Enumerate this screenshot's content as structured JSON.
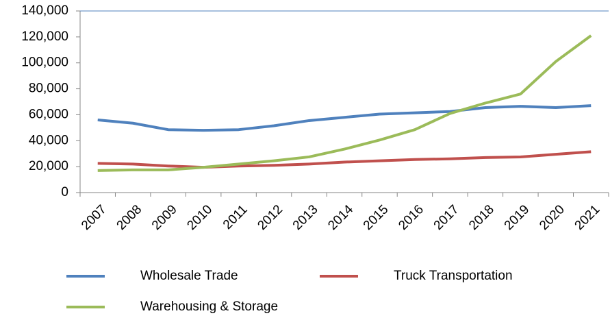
{
  "chart_data": {
    "type": "line",
    "categories": [
      "2007",
      "2008",
      "2009",
      "2010",
      "2011",
      "2012",
      "2013",
      "2014",
      "2015",
      "2016",
      "2017",
      "2018",
      "2019",
      "2020",
      "2021"
    ],
    "series": [
      {
        "name": "Wholesale Trade",
        "color": "#4f81bd",
        "values": [
          56000,
          53500,
          48500,
          48000,
          48500,
          51500,
          55500,
          58000,
          60500,
          61500,
          62500,
          65500,
          66500,
          65500,
          67000
        ]
      },
      {
        "name": "Truck Transportation",
        "color": "#c0504d",
        "values": [
          22500,
          22000,
          20500,
          19500,
          20500,
          21000,
          22000,
          23500,
          24500,
          25500,
          26000,
          27000,
          27500,
          29500,
          31500
        ]
      },
      {
        "name": "Warehousing & Storage",
        "color": "#9bbb59",
        "values": [
          17000,
          17500,
          17500,
          19500,
          22000,
          24500,
          27500,
          33500,
          40500,
          48500,
          61000,
          69000,
          76000,
          101000,
          121000
        ]
      }
    ],
    "ylim": [
      0,
      140000
    ],
    "yticks": [
      0,
      {
        "value": 20000,
        "label": "20,000"
      },
      {
        "value": 40000,
        "label": "40,000"
      },
      {
        "value": 60000,
        "label": "60,000"
      },
      {
        "value": 80000,
        "label": "80,000"
      },
      {
        "value": 100000,
        "label": "100,000"
      },
      {
        "value": 120000,
        "label": "120,000"
      },
      {
        "value": 140000,
        "label": "140,000"
      }
    ],
    "grid": false,
    "legend": "bottom"
  }
}
